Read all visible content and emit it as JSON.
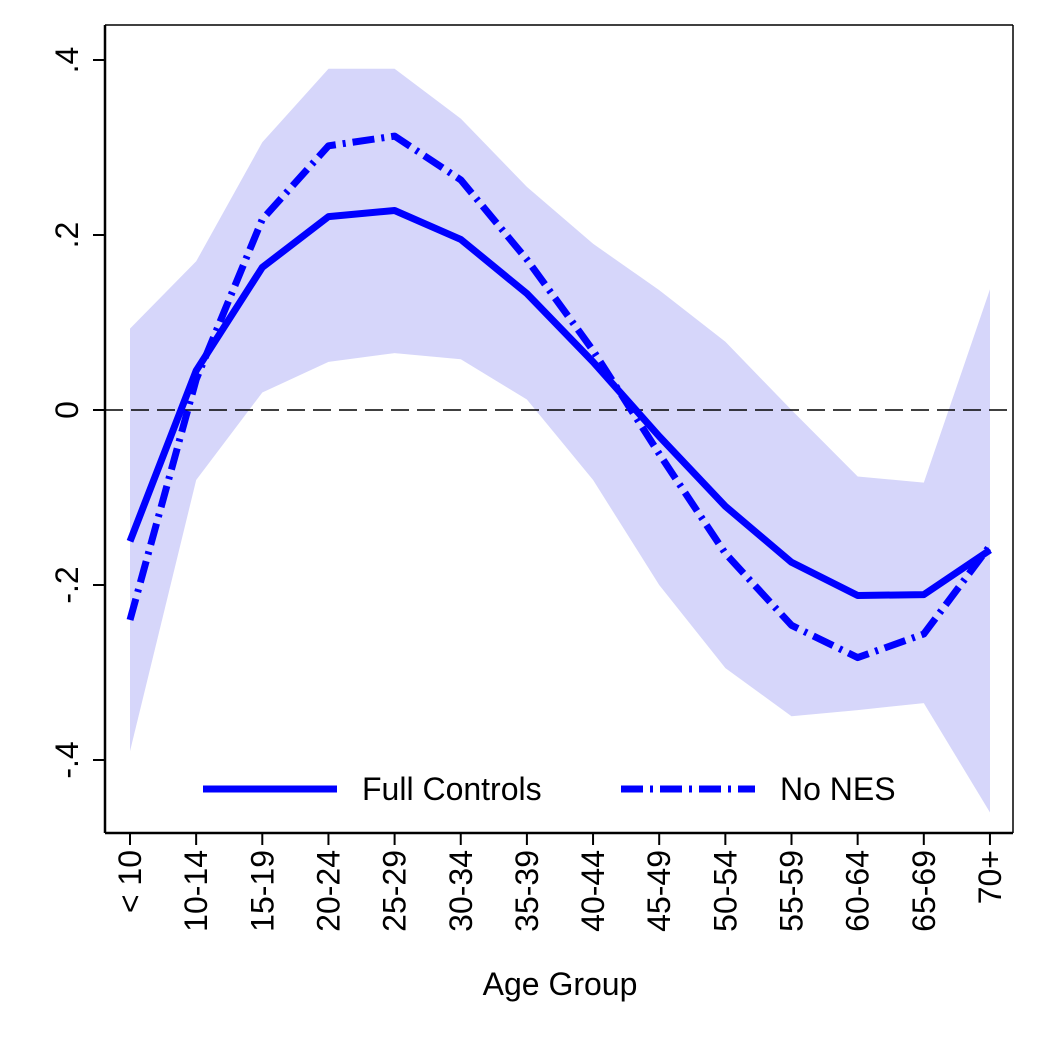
{
  "chart_data": {
    "type": "line",
    "xlabel": "Age Group",
    "ylabel": "",
    "categories": [
      "< 10",
      "10-14",
      "15-19",
      "20-24",
      "25-29",
      "30-34",
      "35-39",
      "40-44",
      "45-49",
      "50-54",
      "55-59",
      "60-64",
      "65-69",
      "70+"
    ],
    "ylim": [
      -0.48,
      0.41
    ],
    "yticks": [
      -0.4,
      -0.2,
      0,
      0.2,
      0.4
    ],
    "ytick_labels": [
      "-.4",
      "-.2",
      "0",
      ".2",
      ".4"
    ],
    "reference_line": {
      "y": 0,
      "style": "dashed"
    },
    "confidence_band": {
      "lower": [
        -0.39,
        -0.08,
        0.02,
        0.055,
        0.065,
        0.058,
        0.012,
        -0.08,
        -0.2,
        -0.295,
        -0.35,
        -0.343,
        -0.335,
        -0.46
      ],
      "upper": [
        0.093,
        0.17,
        0.306,
        0.39,
        0.39,
        0.333,
        0.255,
        0.19,
        0.137,
        0.078,
        0.0,
        -0.076,
        -0.083,
        0.138
      ],
      "color": "#d6d6fa"
    },
    "series": [
      {
        "name": "Full Controls",
        "style": "solid",
        "color": "#0000ff",
        "values": [
          -0.15,
          0.045,
          0.163,
          0.221,
          0.228,
          0.195,
          0.133,
          0.055,
          -0.03,
          -0.11,
          -0.174,
          -0.212,
          -0.211,
          -0.16
        ]
      },
      {
        "name": "No NES",
        "style": "dash-dot",
        "color": "#0000ff",
        "values": [
          -0.24,
          0.035,
          0.218,
          0.302,
          0.313,
          0.263,
          0.172,
          0.068,
          -0.05,
          -0.164,
          -0.246,
          -0.283,
          -0.256,
          -0.155
        ]
      }
    ],
    "legend": {
      "position": "bottom-inside"
    },
    "grid": false
  }
}
